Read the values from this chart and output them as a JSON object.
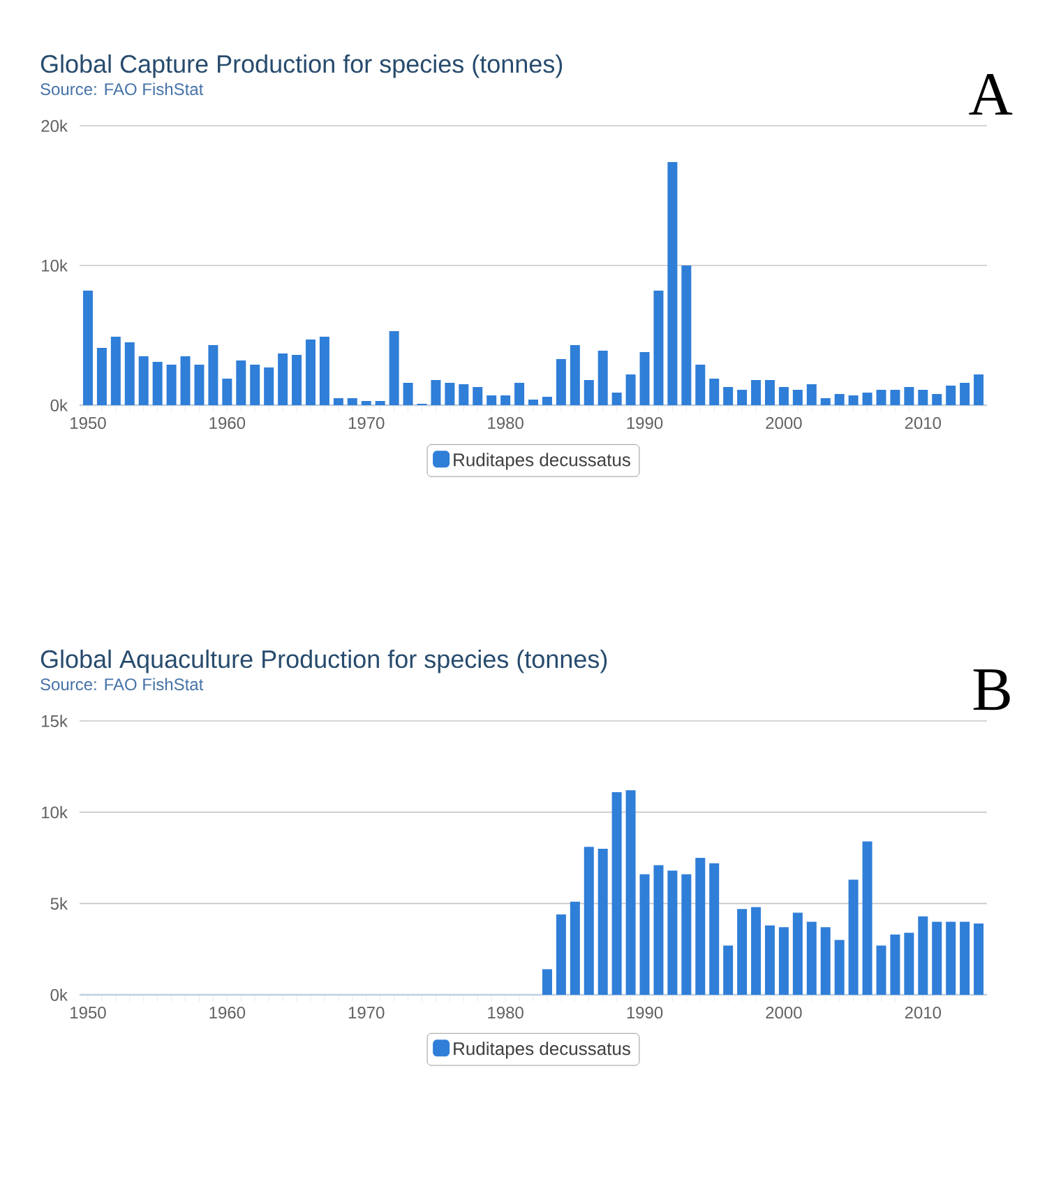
{
  "chart_data": [
    {
      "type": "bar",
      "title": "Global Capture Production for species (tonnes)",
      "subtitle": "Source: FAO FishStat",
      "annotations": [
        "A"
      ],
      "x": [
        1950,
        1951,
        1952,
        1953,
        1954,
        1955,
        1956,
        1957,
        1958,
        1959,
        1960,
        1961,
        1962,
        1963,
        1964,
        1965,
        1966,
        1967,
        1968,
        1969,
        1970,
        1971,
        1972,
        1973,
        1974,
        1975,
        1976,
        1977,
        1978,
        1979,
        1980,
        1981,
        1982,
        1983,
        1984,
        1985,
        1986,
        1987,
        1988,
        1989,
        1990,
        1991,
        1992,
        1993,
        1994,
        1995,
        1996,
        1997,
        1998,
        1999,
        2000,
        2001,
        2002,
        2003,
        2004,
        2005,
        2006,
        2007,
        2008,
        2009,
        2010,
        2011,
        2012,
        2013,
        2014
      ],
      "series": [
        {
          "name": "Ruditapes decussatus",
          "color": "#2f7ed8",
          "values": [
            8200,
            4100,
            4900,
            4500,
            3500,
            3100,
            2900,
            3500,
            2900,
            4300,
            1900,
            3200,
            2900,
            2700,
            3700,
            3600,
            4700,
            4900,
            500,
            500,
            300,
            300,
            5300,
            1600,
            100,
            1800,
            1600,
            1500,
            1300,
            700,
            700,
            1600,
            400,
            600,
            3300,
            4300,
            1800,
            3900,
            900,
            2200,
            3800,
            8200,
            17400,
            10000,
            2900,
            1900,
            1300,
            1100,
            1800,
            1800,
            1300,
            1100,
            1500,
            500,
            800,
            700,
            900,
            1100,
            1100,
            1300,
            1100,
            800,
            1400,
            1600,
            2200
          ]
        }
      ],
      "xlim": [
        1949.4,
        2014.6
      ],
      "xticks": [
        1950,
        1960,
        1970,
        1980,
        1990,
        2000,
        2010
      ],
      "ylim": [
        0,
        20000
      ],
      "yticks": [
        {
          "value": 0,
          "label": "0k"
        },
        {
          "value": 10000,
          "label": "10k"
        },
        {
          "value": 20000,
          "label": "20k"
        }
      ],
      "grid": "y",
      "legend": "bottom"
    },
    {
      "type": "bar",
      "title": "Global Aquaculture Production for species (tonnes)",
      "subtitle": "Source: FAO FishStat",
      "annotations": [
        "B"
      ],
      "x": [
        1983,
        1984,
        1985,
        1986,
        1987,
        1988,
        1989,
        1990,
        1991,
        1992,
        1993,
        1994,
        1995,
        1996,
        1997,
        1998,
        1999,
        2000,
        2001,
        2002,
        2003,
        2004,
        2005,
        2006,
        2007,
        2008,
        2009,
        2010,
        2011,
        2012,
        2013,
        2014
      ],
      "series": [
        {
          "name": "Ruditapes decussatus",
          "color": "#2f7ed8",
          "values": [
            1400,
            4400,
            5100,
            8100,
            8000,
            11100,
            11200,
            6600,
            7100,
            6800,
            6600,
            7500,
            7200,
            2700,
            4700,
            4800,
            3800,
            3700,
            4500,
            4000,
            3700,
            3000,
            6300,
            8400,
            2700,
            3300,
            3400,
            4300,
            4000,
            4000,
            4000,
            3900
          ]
        }
      ],
      "xlim": [
        1949.4,
        2014.6
      ],
      "xticks": [
        1950,
        1960,
        1970,
        1980,
        1990,
        2000,
        2010
      ],
      "ylim": [
        0,
        15000
      ],
      "yticks": [
        {
          "value": 0,
          "label": "0k"
        },
        {
          "value": 5000,
          "label": "5k"
        },
        {
          "value": 10000,
          "label": "10k"
        },
        {
          "value": 15000,
          "label": "15k"
        }
      ],
      "grid": "y",
      "legend": "bottom"
    }
  ]
}
